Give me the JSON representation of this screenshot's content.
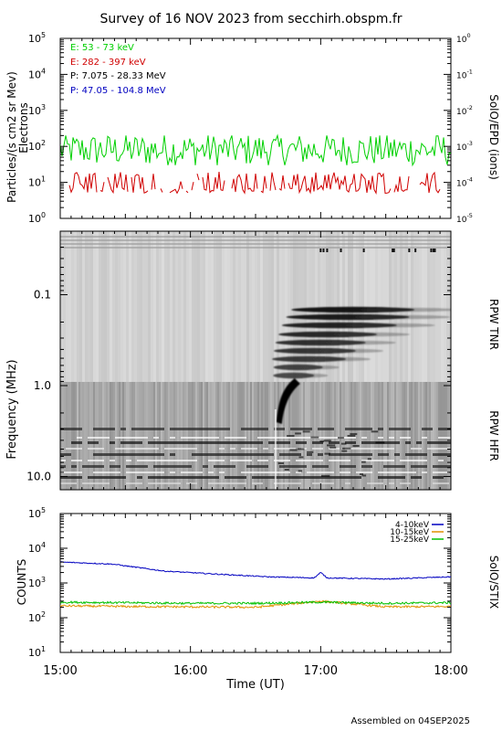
{
  "title": "Survey of 16 NOV 2023 from secchirh.obspm.fr",
  "footer": "Assembled on 04SEP2025",
  "time_axis": {
    "label": "Time (UT)",
    "ticks": [
      "15:00",
      "16:00",
      "17:00",
      "18:00"
    ],
    "range_hours": [
      15,
      18
    ]
  },
  "colors": {
    "e1": "#00d000",
    "e2": "#d00000",
    "p1": "#000000",
    "p2": "#0000c0",
    "stix1": "#0000c0",
    "stix2": "#e09000",
    "stix3": "#00c000"
  },
  "chart_data": [
    {
      "type": "line",
      "panel": "epd",
      "ylabel_left": "Particles/(s cm2 sr Mev)",
      "ylabel_left2": "Electrons",
      "ylabel_right": "SolO/EPD (ions)",
      "left_axis": {
        "scale": "log",
        "range": [
          1,
          100000
        ],
        "ticks": [
          "10^0",
          "10^1",
          "10^2",
          "10^3",
          "10^4",
          "10^5"
        ]
      },
      "right_axis": {
        "scale": "log",
        "range": [
          1e-05,
          1
        ],
        "ticks": [
          "10^-5",
          "10^-4",
          "10^-3",
          "10^-2",
          "10^-1",
          "10^0"
        ]
      },
      "series": [
        {
          "name": "E: 53 - 73 keV",
          "axis": "left",
          "typical": 80,
          "range": [
            30,
            200
          ]
        },
        {
          "name": "E: 282 - 397 keV",
          "axis": "left",
          "typical": 8,
          "range": [
            5,
            20
          ]
        },
        {
          "name": "P: 7.075 - 28.33 MeV",
          "axis": "right"
        },
        {
          "name": "P: 47.05 - 104.8 MeV",
          "axis": "right"
        }
      ]
    },
    {
      "type": "heatmap",
      "panel": "rpw",
      "ylabel": "Frequency (MHz)",
      "scale": "log",
      "yticks": [
        "0.1",
        "1.0",
        "10.0"
      ],
      "range_mhz": [
        0.02,
        14
      ],
      "labels_right": [
        "RPW TNR",
        "RPW HFR"
      ],
      "burst": {
        "type": "type III radio burst",
        "start_time": "16:40",
        "drift": "high to low frequency"
      }
    },
    {
      "type": "line",
      "panel": "stix",
      "ylabel": "COUNTS",
      "ylabel_right": "SolO/STIX",
      "scale": "log",
      "ylim": [
        10,
        100000
      ],
      "yticks": [
        "10^1",
        "10^2",
        "10^3",
        "10^4",
        "10^5"
      ],
      "series": [
        {
          "name": "4-10keV",
          "x": [
            15.0,
            15.4,
            15.8,
            16.2,
            16.6,
            16.95,
            17.0,
            17.05,
            17.5,
            18.0
          ],
          "y": [
            4000,
            3500,
            2200,
            1800,
            1500,
            1400,
            2000,
            1400,
            1300,
            1500
          ]
        },
        {
          "name": "10-15keV",
          "x": [
            15.0,
            15.5,
            16.0,
            16.5,
            17.0,
            17.5,
            18.0
          ],
          "y": [
            220,
            210,
            205,
            200,
            300,
            205,
            210
          ]
        },
        {
          "name": "15-25keV",
          "x": [
            15.0,
            15.5,
            16.0,
            16.5,
            17.0,
            17.5,
            18.0
          ],
          "y": [
            280,
            270,
            260,
            260,
            280,
            260,
            270
          ]
        }
      ]
    }
  ]
}
